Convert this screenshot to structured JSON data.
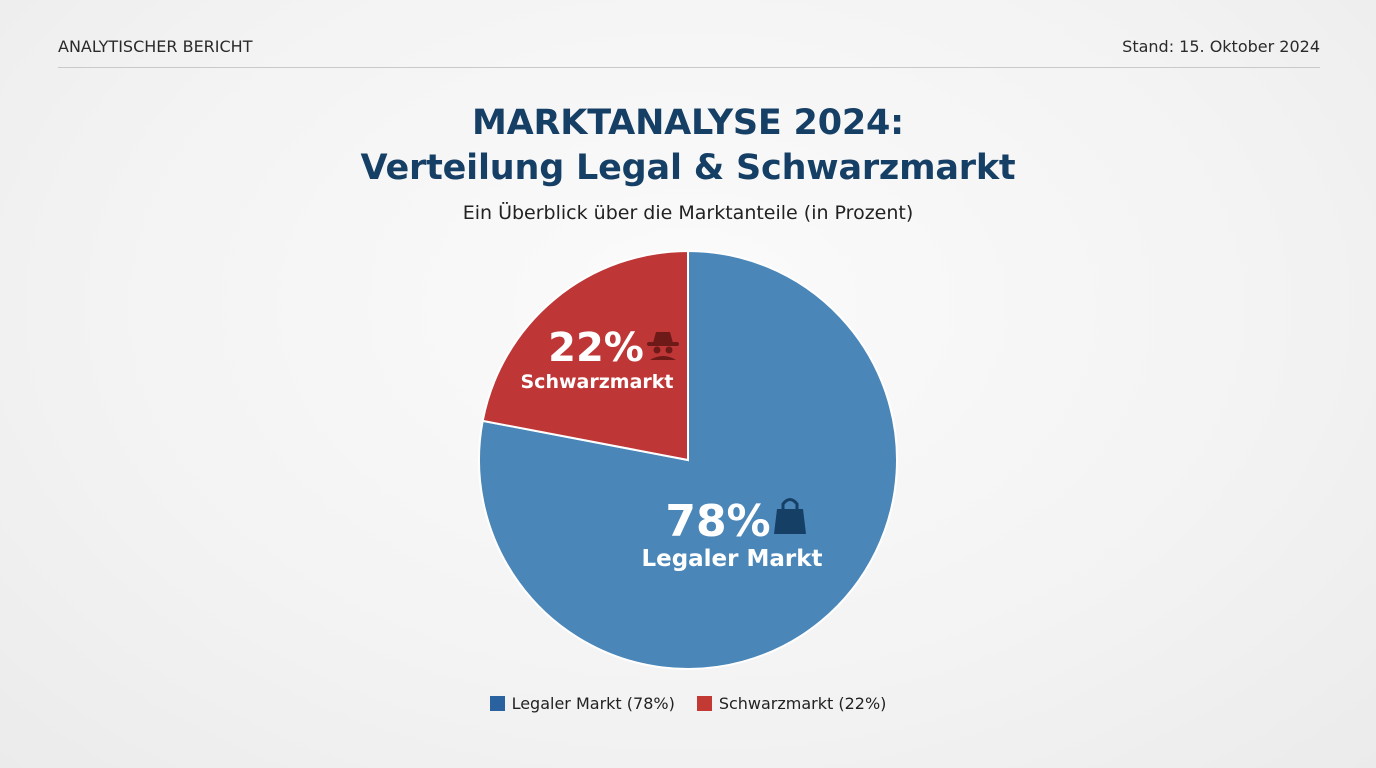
{
  "header": {
    "left": "ANALYTISCHER BERICHT",
    "right": "Stand: 15. Oktober 2024"
  },
  "title": {
    "line1": "MARKTANALYSE 2024:",
    "line2": "Verteilung Legal & Schwarzmarkt"
  },
  "subtitle": "Ein Überblick über die Marktanteile (in Prozent)",
  "chart_data": {
    "type": "pie",
    "title": "MARKTANALYSE 2024: Verteilung Legal & Schwarzmarkt",
    "subtitle": "Ein Überblick über die Marktanteile (in Prozent)",
    "slices": [
      {
        "label": "Legaler Markt",
        "value": 78,
        "value_label": "78%",
        "color": "#4a86b8",
        "icon": "shopping-bag-icon",
        "legend": "Legaler Markt (78%)",
        "legend_color": "#2a62a0"
      },
      {
        "label": "Schwarzmarkt",
        "value": 22,
        "value_label": "22%",
        "color": "#bf3636",
        "icon": "spy-icon",
        "legend": "Schwarzmarkt (22%)",
        "legend_color": "#c33a35"
      }
    ],
    "legend_position": "bottom"
  }
}
